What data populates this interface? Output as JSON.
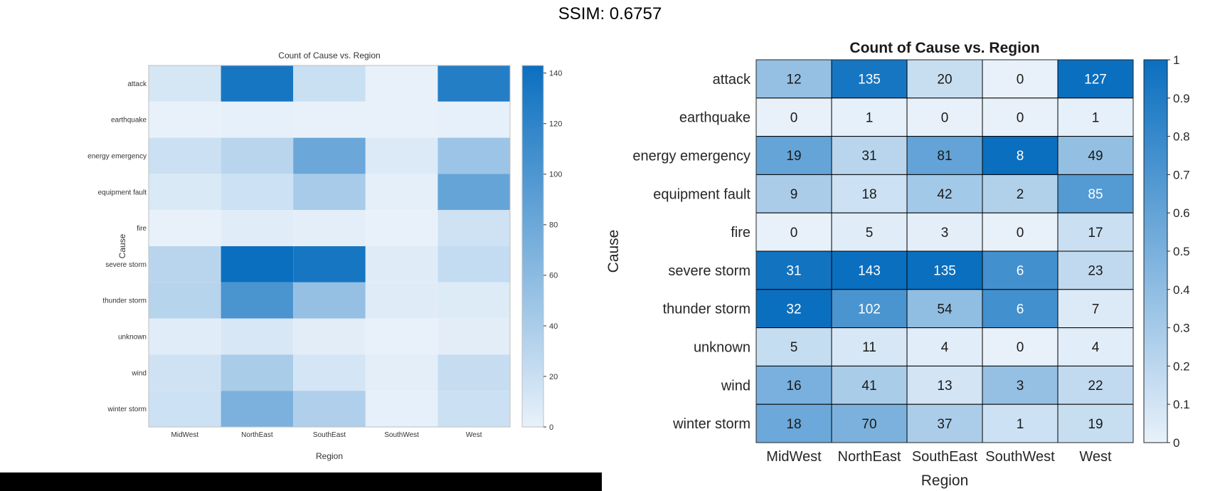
{
  "header": {
    "title": "SSIM: 0.6757"
  },
  "chart_data": [
    {
      "type": "heatmap",
      "title": "Count of Cause vs. Region",
      "xlabel": "Region",
      "ylabel": "Cause",
      "x": [
        "MidWest",
        "NorthEast",
        "SouthEast",
        "SouthWest",
        "West"
      ],
      "y": [
        "attack",
        "earthquake",
        "energy emergency",
        "equipment fault",
        "fire",
        "severe storm",
        "thunder storm",
        "unknown",
        "wind",
        "winter storm"
      ],
      "values": [
        [
          12,
          135,
          20,
          0,
          127
        ],
        [
          0,
          1,
          0,
          0,
          1
        ],
        [
          19,
          31,
          81,
          8,
          49
        ],
        [
          9,
          18,
          42,
          2,
          85
        ],
        [
          0,
          5,
          3,
          0,
          17
        ],
        [
          31,
          143,
          135,
          6,
          23
        ],
        [
          32,
          102,
          54,
          6,
          7
        ],
        [
          5,
          11,
          4,
          0,
          4
        ],
        [
          16,
          41,
          13,
          3,
          22
        ],
        [
          18,
          70,
          37,
          1,
          19
        ]
      ],
      "show_values": false,
      "colorbar": {
        "range": [
          0,
          143
        ],
        "ticks": [
          0,
          20,
          40,
          60,
          80,
          100,
          120,
          140
        ],
        "position": "right"
      },
      "colors": {
        "low": "#e8f1fa",
        "high": "#0b6fbf"
      }
    },
    {
      "type": "heatmap",
      "title": "Count of Cause vs. Region",
      "xlabel": "Region",
      "ylabel": "Cause",
      "x": [
        "MidWest",
        "NorthEast",
        "SouthEast",
        "SouthWest",
        "West"
      ],
      "y": [
        "attack",
        "earthquake",
        "energy emergency",
        "equipment fault",
        "fire",
        "severe storm",
        "thunder storm",
        "unknown",
        "wind",
        "winter storm"
      ],
      "values": [
        [
          12,
          135,
          20,
          0,
          127
        ],
        [
          0,
          1,
          0,
          0,
          1
        ],
        [
          19,
          31,
          81,
          8,
          49
        ],
        [
          9,
          18,
          42,
          2,
          85
        ],
        [
          0,
          5,
          3,
          0,
          17
        ],
        [
          31,
          143,
          135,
          6,
          23
        ],
        [
          32,
          102,
          54,
          6,
          7
        ],
        [
          5,
          11,
          4,
          0,
          4
        ],
        [
          16,
          41,
          13,
          3,
          22
        ],
        [
          18,
          70,
          37,
          1,
          19
        ]
      ],
      "show_values": true,
      "normalization": "per column",
      "colorbar": {
        "range": [
          0,
          1
        ],
        "ticks": [
          0,
          0.1,
          0.2,
          0.3,
          0.4,
          0.5,
          0.6,
          0.7,
          0.8,
          0.9,
          1
        ],
        "position": "right"
      },
      "colors": {
        "low": "#e8f1fa",
        "high": "#0b6fbf"
      },
      "cell_border": true
    }
  ]
}
